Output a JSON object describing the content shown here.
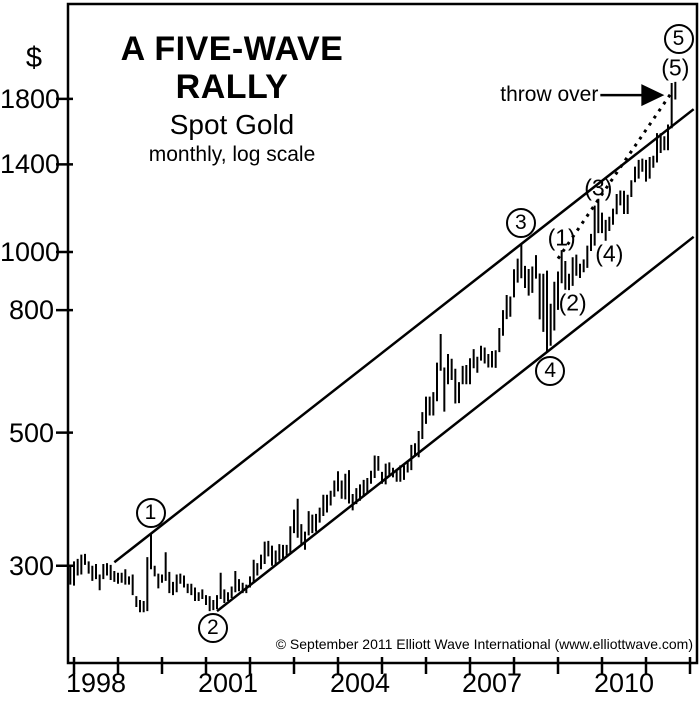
{
  "figure": {
    "currency_symbol": "$",
    "title": "A FIVE-WAVE RALLY",
    "subtitle": "Spot Gold",
    "scale_note": "monthly, log scale",
    "copyright": "© September 2011 Elliott Wave International (www.elliottwave.com)",
    "throw_over_label": "throw over"
  },
  "chart_data": {
    "type": "bar",
    "subtype": "high-low-price-bars",
    "title": "A FIVE-WAVE RALLY",
    "instrument": "Spot Gold",
    "timeframe": "monthly",
    "y_scale": "log",
    "ylabel": "$",
    "y_ticks": [
      1800,
      1400,
      1000,
      800,
      500,
      300
    ],
    "ylim": [
      230,
      2400
    ],
    "x_labeled_years": [
      1998,
      2001,
      2004,
      2007,
      2010
    ],
    "x_first_tick_year": 1998,
    "x_last_tick_year": 2012,
    "start_month": "1997-12",
    "end_month": "2011-09",
    "bars_high_low": [
      [
        300,
        279
      ],
      [
        305,
        278
      ],
      [
        308,
        289
      ],
      [
        313,
        290
      ],
      [
        314,
        301
      ],
      [
        305,
        291
      ],
      [
        300,
        283
      ],
      [
        302,
        285
      ],
      [
        290,
        273
      ],
      [
        302,
        285
      ],
      [
        303,
        289
      ],
      [
        301,
        284
      ],
      [
        294,
        282
      ],
      [
        292,
        280
      ],
      [
        292,
        281
      ],
      [
        296,
        279
      ],
      [
        288,
        279
      ],
      [
        290,
        268
      ],
      [
        267,
        256
      ],
      [
        263,
        251
      ],
      [
        262,
        251
      ],
      [
        310,
        252
      ],
      [
        339,
        296
      ],
      [
        300,
        288
      ],
      [
        291,
        275
      ],
      [
        290,
        281
      ],
      [
        316,
        283
      ],
      [
        293,
        270
      ],
      [
        282,
        268
      ],
      [
        290,
        271
      ],
      [
        291,
        280
      ],
      [
        289,
        276
      ],
      [
        280,
        270
      ],
      [
        280,
        268
      ],
      [
        276,
        262
      ],
      [
        271,
        262
      ],
      [
        274,
        264
      ],
      [
        268,
        258
      ],
      [
        267,
        252
      ],
      [
        263,
        253
      ],
      [
        268,
        254
      ],
      [
        292,
        264
      ],
      [
        274,
        260
      ],
      [
        271,
        262
      ],
      [
        277,
        265
      ],
      [
        294,
        271
      ],
      [
        285,
        272
      ],
      [
        281,
        270
      ],
      [
        279,
        270
      ],
      [
        288,
        276
      ],
      [
        307,
        281
      ],
      [
        303,
        289
      ],
      [
        313,
        296
      ],
      [
        329,
        302
      ],
      [
        330,
        311
      ],
      [
        324,
        300
      ],
      [
        318,
        300
      ],
      [
        326,
        306
      ],
      [
        325,
        308
      ],
      [
        325,
        312
      ],
      [
        349,
        314
      ],
      [
        372,
        340
      ],
      [
        388,
        334
      ],
      [
        352,
        325
      ],
      [
        342,
        319
      ],
      [
        370,
        337
      ],
      [
        365,
        340
      ],
      [
        366,
        342
      ],
      [
        375,
        354
      ],
      [
        394,
        363
      ],
      [
        394,
        368
      ],
      [
        400,
        378
      ],
      [
        416,
        391
      ],
      [
        431,
        399
      ],
      [
        416,
        388
      ],
      [
        427,
        387
      ],
      [
        433,
        381
      ],
      [
        395,
        371
      ],
      [
        404,
        380
      ],
      [
        410,
        385
      ],
      [
        417,
        391
      ],
      [
        420,
        395
      ],
      [
        432,
        411
      ],
      [
        458,
        420
      ],
      [
        457,
        432
      ],
      [
        430,
        411
      ],
      [
        444,
        410
      ],
      [
        446,
        424
      ],
      [
        437,
        421
      ],
      [
        432,
        414
      ],
      [
        441,
        414
      ],
      [
        441,
        417
      ],
      [
        448,
        429
      ],
      [
        477,
        433
      ],
      [
        480,
        456
      ],
      [
        503,
        455
      ],
      [
        541,
        488
      ],
      [
        574,
        517
      ],
      [
        574,
        534
      ],
      [
        584,
        534
      ],
      [
        654,
        564
      ],
      [
        730,
        634
      ],
      [
        642,
        542
      ],
      [
        676,
        602
      ],
      [
        664,
        612
      ],
      [
        639,
        559
      ],
      [
        607,
        560
      ],
      [
        646,
        602
      ],
      [
        648,
        602
      ],
      [
        665,
        602
      ],
      [
        689,
        640
      ],
      [
        669,
        629
      ],
      [
        698,
        659
      ],
      [
        693,
        652
      ],
      [
        676,
        642
      ],
      [
        684,
        642
      ],
      [
        686,
        641
      ],
      [
        747,
        681
      ],
      [
        800,
        725
      ],
      [
        848,
        773
      ],
      [
        843,
        780
      ],
      [
        936,
        840
      ],
      [
        975,
        889
      ],
      [
        1033,
        904
      ],
      [
        948,
        871
      ],
      [
        937,
        846
      ],
      [
        946,
        855
      ],
      [
        988,
        903
      ],
      [
        921,
        772
      ],
      [
        920,
        736
      ],
      [
        931,
        681
      ],
      [
        820,
        698
      ],
      [
        892,
        740
      ],
      [
        928,
        801
      ],
      [
        1007,
        887
      ],
      [
        966,
        865
      ],
      [
        920,
        864
      ],
      [
        980,
        878
      ],
      [
        990,
        913
      ],
      [
        956,
        905
      ],
      [
        972,
        925
      ],
      [
        1025,
        941
      ],
      [
        1072,
        1004
      ],
      [
        1195,
        1025
      ],
      [
        1227,
        1075
      ],
      [
        1163,
        1075
      ],
      [
        1131,
        1044
      ],
      [
        1145,
        1084
      ],
      [
        1181,
        1110
      ],
      [
        1249,
        1156
      ],
      [
        1266,
        1196
      ],
      [
        1265,
        1157
      ],
      [
        1246,
        1157
      ],
      [
        1317,
        1235
      ],
      [
        1388,
        1307
      ],
      [
        1424,
        1325
      ],
      [
        1431,
        1361
      ],
      [
        1424,
        1310
      ],
      [
        1440,
        1325
      ],
      [
        1447,
        1382
      ],
      [
        1578,
        1410
      ],
      [
        1577,
        1462
      ],
      [
        1559,
        1478
      ],
      [
        1631,
        1478
      ],
      [
        1913,
        1608
      ],
      [
        1921,
        1795
      ]
    ],
    "trendlines": [
      {
        "name": "upper-channel-line",
        "style": "solid",
        "from": {
          "date": "1998-12",
          "price": 304
        },
        "to": {
          "date": "2012-02",
          "price": 1730
        }
      },
      {
        "name": "lower-channel-line",
        "style": "solid",
        "from": {
          "date": "2001-04",
          "price": 252
        },
        "to": {
          "date": "2012-02",
          "price": 1060
        }
      },
      {
        "name": "wave-five-dotted-line",
        "style": "dotted",
        "from": {
          "date": "2009-01",
          "price": 975
        },
        "to": {
          "date": "2011-08",
          "price": 1845
        }
      }
    ],
    "wave_labels": [
      {
        "text": "1",
        "style": "circled",
        "date": "1999-10",
        "price": 366
      },
      {
        "text": "2",
        "style": "circled",
        "date": "2001-03",
        "price": 236
      },
      {
        "text": "3",
        "style": "circled",
        "date": "2008-03",
        "price": 1114
      },
      {
        "text": "4",
        "style": "circled",
        "date": "2008-11",
        "price": 631
      },
      {
        "text": "5",
        "style": "circled",
        "date": "2011-10",
        "price": 2256
      },
      {
        "text": "(1)",
        "style": "plain",
        "date": "2009-02",
        "price": 1055
      },
      {
        "text": "(2)",
        "style": "plain",
        "date": "2009-05",
        "price": 823
      },
      {
        "text": "(3)",
        "style": "plain",
        "date": "2009-12",
        "price": 1279
      },
      {
        "text": "(4)",
        "style": "plain",
        "date": "2010-03",
        "price": 992
      },
      {
        "text": "(5)",
        "style": "plain",
        "date": "2011-09",
        "price": 2027
      }
    ],
    "annotation_arrow": {
      "label": "throw over",
      "tip": {
        "date": "2011-06",
        "price": 1826
      }
    }
  }
}
